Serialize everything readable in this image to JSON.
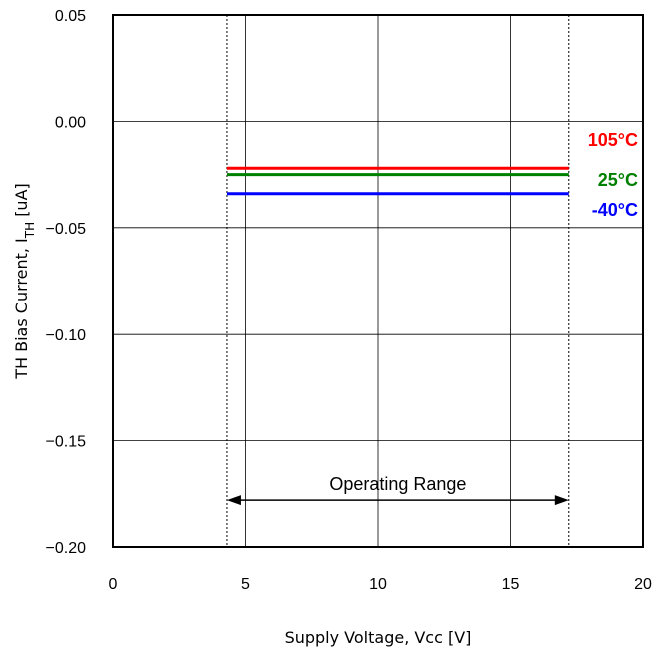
{
  "chart_data": {
    "type": "line",
    "xlabel": "Supply Voltage, Vcc [V]",
    "ylabel": "TH Bias Current, I",
    "ylabel_sub": "TH",
    "ylabel_unit": " [uA]",
    "xlim": [
      0,
      20
    ],
    "ylim": [
      -0.2,
      0.05
    ],
    "xticks": [
      0,
      5,
      10,
      15,
      20
    ],
    "xtick_labels": [
      "0",
      "5",
      "10",
      "15",
      "20"
    ],
    "yticks": [
      0.05,
      0.0,
      -0.05,
      -0.1,
      -0.15,
      -0.2
    ],
    "ytick_labels": [
      "0.05",
      "0.00",
      "−0.05",
      "−0.10",
      "−0.15",
      "−0.20"
    ],
    "grid": true,
    "series": [
      {
        "name": "105°C",
        "color": "#ff0000",
        "x": [
          4.3,
          17.2
        ],
        "y": [
          -0.022,
          -0.022
        ]
      },
      {
        "name": "25°C",
        "color": "#008000",
        "x": [
          4.3,
          17.2
        ],
        "y": [
          -0.025,
          -0.025
        ]
      },
      {
        "name": "-40°C",
        "color": "#0000ff",
        "x": [
          4.3,
          17.2
        ],
        "y": [
          -0.034,
          -0.034
        ]
      }
    ],
    "operating_range": {
      "label": "Operating Range",
      "x": [
        4.3,
        17.2
      ],
      "y": -0.178
    }
  }
}
